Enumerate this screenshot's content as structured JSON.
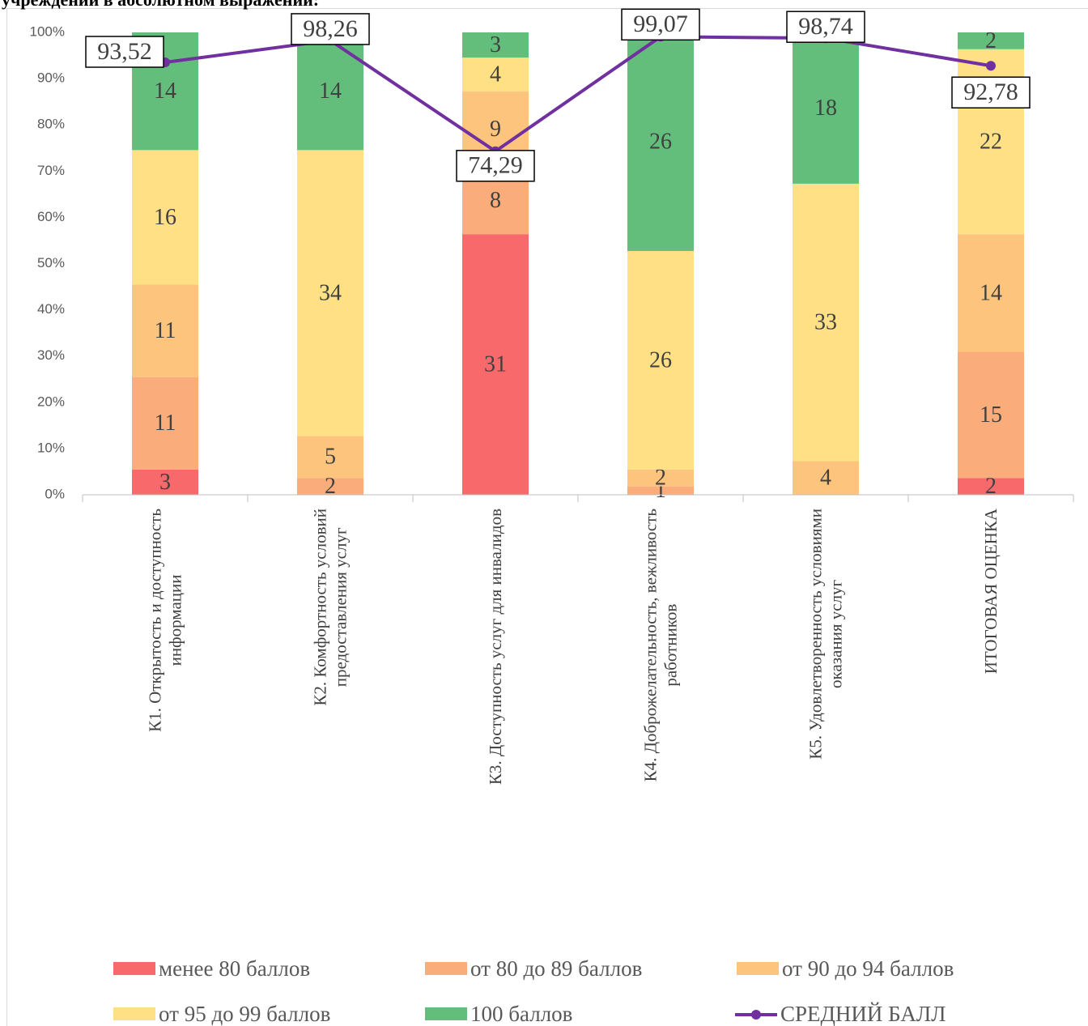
{
  "chart_data": {
    "type": "stacked_percent_bar_line",
    "title": "учреждений в абсолютном выражении:",
    "categories": [
      [
        "К1. Открытость и доступность",
        "информации"
      ],
      [
        "К2. Комфортность условий",
        "предоставления услуг"
      ],
      [
        "К3. Доступность услуг для инвалидов"
      ],
      [
        "К4. Доброжелательность, вежливость",
        "работников"
      ],
      [
        "К5. Удовлетворенность условиями",
        "оказания услуг"
      ],
      [
        "ИТОГОВАЯ ОЦЕНКА"
      ]
    ],
    "series": [
      {
        "name": "менее 80 баллов",
        "color": "#f8696b",
        "values": [
          3,
          0,
          31,
          0,
          0,
          2
        ]
      },
      {
        "name": "от 80 до 89 баллов",
        "color": "#faad7a",
        "values": [
          11,
          2,
          8,
          1,
          0,
          15
        ]
      },
      {
        "name": "от 90 до 94 баллов",
        "color": "#fdc47e",
        "values": [
          11,
          5,
          9,
          2,
          4,
          14
        ]
      },
      {
        "name": "от 95 до 99 баллов",
        "color": "#ffe084",
        "values": [
          16,
          34,
          4,
          26,
          33,
          22
        ]
      },
      {
        "name": "100 баллов",
        "color": "#63be7b",
        "values": [
          14,
          14,
          3,
          26,
          18,
          2
        ]
      },
      {
        "name": "СРЕДНИЙ БАЛЛ",
        "color": "#7030a0",
        "type": "line",
        "values": [
          93.52,
          98.26,
          74.29,
          99.07,
          98.74,
          92.78
        ],
        "value_labels": [
          "93,52",
          "98,26",
          "74,29",
          "99,07",
          "98,74",
          "92,78"
        ]
      }
    ],
    "ylim": [
      0,
      100
    ],
    "yticks": [
      {
        "value": 0,
        "label": "0%"
      },
      {
        "value": 10,
        "label": "10%"
      },
      {
        "value": 20,
        "label": "20%"
      },
      {
        "value": 30,
        "label": "30%"
      },
      {
        "value": 40,
        "label": "40%"
      },
      {
        "value": 50,
        "label": "50%"
      },
      {
        "value": 60,
        "label": "60%"
      },
      {
        "value": 70,
        "label": "70%"
      },
      {
        "value": 80,
        "label": "80%"
      },
      {
        "value": 90,
        "label": "90%"
      },
      {
        "value": 100,
        "label": "100%"
      }
    ],
    "grid": false,
    "legend": "bottom"
  }
}
